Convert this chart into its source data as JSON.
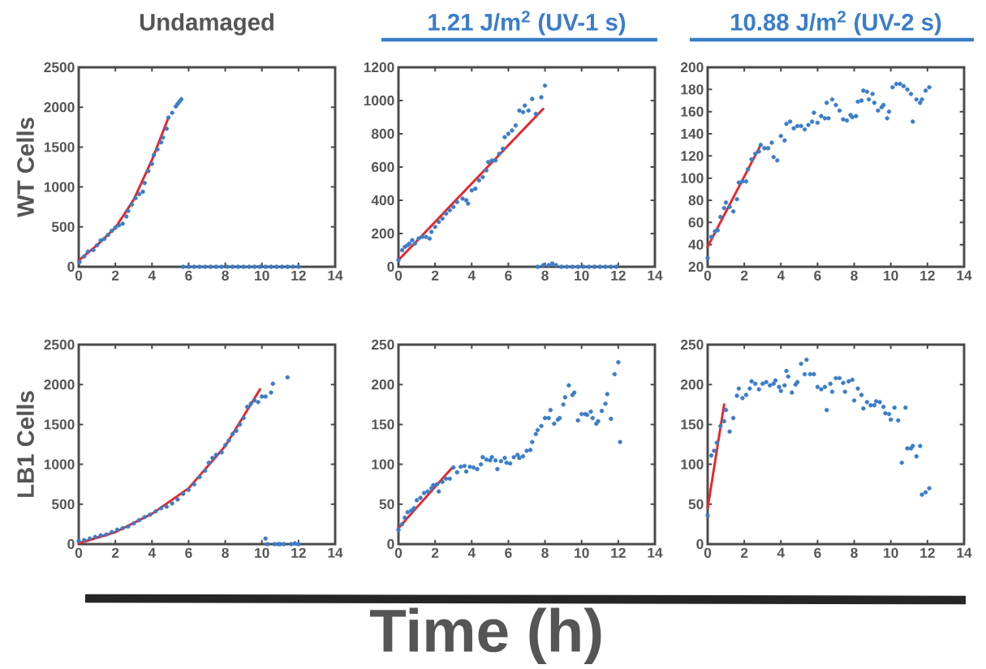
{
  "chart_data": [
    {
      "type": "scatter",
      "title": "Undamaged",
      "ylabel": "WT Cells",
      "xlim": [
        0,
        14
      ],
      "ylim": [
        0,
        2500
      ],
      "xticks": [
        0,
        2,
        4,
        6,
        8,
        10,
        12,
        14
      ],
      "yticks": [
        0,
        500,
        1000,
        1500,
        2000,
        2500
      ],
      "series": [
        {
          "color": "#3a7dc9",
          "marker": "circle",
          "x": [
            0.05,
            0.3,
            0.5,
            0.8,
            1.0,
            1.2,
            1.4,
            1.6,
            1.8,
            2.0,
            2.2,
            2.4,
            2.6,
            2.7,
            2.9,
            3.1,
            3.3,
            3.5,
            3.6,
            3.8,
            4.0,
            4.1,
            4.3,
            4.5,
            4.6,
            4.8,
            4.9,
            5.1,
            5.3,
            5.4,
            5.5,
            5.6,
            5.7,
            6.0,
            6.3,
            6.6,
            6.9,
            7.2,
            7.5,
            7.8,
            8.1,
            8.4,
            8.7,
            9.0,
            9.3,
            9.6,
            9.9,
            10.2,
            10.5,
            10.8,
            11.1,
            11.4,
            11.7,
            12.0
          ],
          "values": [
            60,
            130,
            190,
            210,
            270,
            330,
            350,
            400,
            450,
            490,
            520,
            540,
            630,
            700,
            780,
            860,
            910,
            940,
            1050,
            1200,
            1290,
            1400,
            1470,
            1560,
            1620,
            1730,
            1870,
            1930,
            2010,
            2040,
            2070,
            2100,
            0,
            0,
            0,
            0,
            0,
            0,
            0,
            0,
            0,
            0,
            0,
            0,
            0,
            0,
            0,
            0,
            0,
            0,
            0,
            0,
            0,
            0
          ]
        },
        {
          "type": "line",
          "color": "#e8262b",
          "x": [
            0,
            1,
            2,
            3,
            4,
            4.9
          ],
          "values": [
            80,
            270,
            490,
            840,
            1340,
            1870
          ]
        }
      ]
    },
    {
      "type": "scatter",
      "title": "1.21 J/m$^{2}$ (UV-1 s)",
      "xlim": [
        0,
        14
      ],
      "ylim": [
        0,
        1200
      ],
      "xticks": [
        0,
        2,
        4,
        6,
        8,
        10,
        12,
        14
      ],
      "yticks": [
        0,
        200,
        400,
        600,
        800,
        1000,
        1200
      ],
      "series": [
        {
          "color": "#3a7dc9",
          "marker": "circle",
          "x": [
            0,
            0.2,
            0.35,
            0.5,
            0.6,
            0.75,
            0.9,
            1.1,
            1.3,
            1.5,
            1.7,
            1.8,
            2.0,
            2.2,
            2.4,
            2.6,
            2.8,
            3.0,
            3.2,
            3.5,
            3.7,
            3.8,
            4.0,
            4.2,
            4.4,
            4.6,
            4.8,
            4.9,
            5.1,
            5.3,
            5.5,
            5.7,
            5.8,
            6.0,
            6.2,
            6.4,
            6.6,
            6.8,
            6.9,
            7.1,
            7.3,
            7.5,
            7.8,
            8.0,
            7.6,
            7.9,
            8.2,
            8.4,
            8.6,
            8.9,
            9.2,
            9.5,
            9.8,
            10.1,
            10.4,
            10.7,
            11.0,
            11.3,
            11.6,
            11.9
          ],
          "values": [
            40,
            100,
            120,
            130,
            140,
            160,
            140,
            170,
            180,
            180,
            170,
            210,
            240,
            270,
            290,
            320,
            340,
            360,
            390,
            410,
            400,
            380,
            460,
            470,
            520,
            540,
            580,
            630,
            640,
            640,
            680,
            710,
            780,
            800,
            820,
            850,
            940,
            930,
            970,
            940,
            1010,
            920,
            1020,
            1090,
            0,
            10,
            10,
            20,
            10,
            0,
            0,
            0,
            0,
            0,
            0,
            0,
            0,
            0,
            0,
            0
          ]
        },
        {
          "type": "line",
          "color": "#e8262b",
          "x": [
            0,
            7.9
          ],
          "values": [
            40,
            950
          ]
        }
      ]
    },
    {
      "type": "scatter",
      "title": "10.88 J/m$^{2}$ (UV-2 s)",
      "xlim": [
        0,
        14
      ],
      "ylim": [
        20,
        200
      ],
      "xticks": [
        0,
        2,
        4,
        6,
        8,
        10,
        12,
        14
      ],
      "yticks": [
        20,
        40,
        60,
        80,
        100,
        120,
        140,
        160,
        180,
        200
      ],
      "series": [
        {
          "color": "#3a7dc9",
          "marker": "circle",
          "x": [
            0,
            0.2,
            0.4,
            0.55,
            0.7,
            0.9,
            1.0,
            1.2,
            1.4,
            1.6,
            1.7,
            1.9,
            2.1,
            2.2,
            2.4,
            2.6,
            2.8,
            2.9,
            3.1,
            3.3,
            3.5,
            3.6,
            3.8,
            4.0,
            4.2,
            4.3,
            4.5,
            4.7,
            4.9,
            5.1,
            5.3,
            5.5,
            5.7,
            5.8,
            6.0,
            6.2,
            6.4,
            6.5,
            6.6,
            6.8,
            7.0,
            7.2,
            7.4,
            7.6,
            7.8,
            7.9,
            8.1,
            8.2,
            8.4,
            8.5,
            8.7,
            8.8,
            9.0,
            9.1,
            9.3,
            9.5,
            9.6,
            9.8,
            9.9,
            10.1,
            10.3,
            10.5,
            10.7,
            10.9,
            11.1,
            11.2,
            11.4,
            11.6,
            11.7,
            11.9,
            12.1
          ],
          "values": [
            28,
            47,
            52,
            53,
            65,
            73,
            78,
            74,
            70,
            81,
            96,
            97,
            97,
            108,
            117,
            122,
            124,
            130,
            127,
            127,
            132,
            119,
            116,
            138,
            134,
            149,
            151,
            145,
            147,
            147,
            144,
            148,
            151,
            159,
            150,
            156,
            154,
            168,
            154,
            171,
            166,
            161,
            153,
            152,
            157,
            155,
            156,
            169,
            170,
            179,
            178,
            171,
            176,
            168,
            161,
            164,
            166,
            154,
            160,
            182,
            185,
            185,
            183,
            180,
            176,
            151,
            171,
            168,
            171,
            179,
            182
          ]
        },
        {
          "type": "line",
          "color": "#e8262b",
          "x": [
            0,
            2.9
          ],
          "values": [
            38,
            130
          ]
        }
      ]
    },
    {
      "type": "scatter",
      "ylabel": "LB1 Cells",
      "xlim": [
        0,
        14
      ],
      "ylim": [
        0,
        2500
      ],
      "xticks": [
        0,
        2,
        4,
        6,
        8,
        10,
        12,
        14
      ],
      "yticks": [
        0,
        500,
        1000,
        1500,
        2000,
        2500
      ],
      "series": [
        {
          "color": "#3a7dc9",
          "marker": "circle",
          "x": [
            0,
            0.3,
            0.6,
            0.9,
            1.2,
            1.5,
            1.8,
            2.1,
            2.4,
            2.7,
            3.0,
            3.3,
            3.6,
            3.9,
            4.2,
            4.5,
            4.8,
            5.1,
            5.4,
            5.7,
            6.0,
            6.3,
            6.6,
            6.9,
            7.1,
            7.3,
            7.5,
            7.8,
            8.0,
            8.2,
            8.4,
            8.6,
            8.8,
            9.0,
            9.2,
            9.4,
            9.6,
            9.8,
            10.0,
            10.2,
            10.5,
            10.6,
            11.4,
            10.2,
            10.3,
            10.7,
            10.9,
            11.0,
            11.2,
            11.6,
            11.8,
            12.0
          ],
          "values": [
            40,
            50,
            70,
            90,
            110,
            120,
            150,
            180,
            200,
            220,
            260,
            300,
            340,
            370,
            410,
            450,
            470,
            510,
            560,
            630,
            680,
            750,
            840,
            920,
            1020,
            1080,
            1120,
            1150,
            1240,
            1300,
            1380,
            1420,
            1500,
            1580,
            1720,
            1760,
            1800,
            1780,
            1850,
            1850,
            1900,
            2010,
            2090,
            70,
            0,
            0,
            0,
            0,
            0,
            0,
            10,
            0
          ]
        },
        {
          "type": "line",
          "color": "#e8262b",
          "x": [
            0,
            2,
            4,
            6,
            8,
            9.9
          ],
          "values": [
            10,
            150,
            380,
            700,
            1230,
            1940
          ]
        }
      ]
    },
    {
      "type": "scatter",
      "xlabel": "Time (h)",
      "xlim": [
        0,
        14
      ],
      "ylim": [
        0,
        250
      ],
      "xticks": [
        0,
        2,
        4,
        6,
        8,
        10,
        12,
        14
      ],
      "yticks": [
        0,
        50,
        100,
        150,
        200,
        250
      ],
      "series": [
        {
          "color": "#3a7dc9",
          "marker": "circle",
          "x": [
            0,
            0.2,
            0.35,
            0.5,
            0.7,
            0.85,
            1.0,
            1.2,
            1.4,
            1.6,
            1.8,
            1.9,
            2.1,
            2.2,
            2.4,
            2.6,
            2.8,
            3.0,
            3.2,
            3.4,
            3.6,
            3.7,
            3.9,
            4.1,
            4.3,
            4.5,
            4.6,
            4.8,
            5.0,
            5.1,
            5.3,
            5.4,
            5.6,
            5.8,
            5.9,
            6.1,
            6.3,
            6.5,
            6.6,
            6.8,
            7.0,
            7.2,
            7.3,
            7.5,
            7.6,
            7.8,
            8.0,
            8.2,
            8.3,
            8.5,
            8.7,
            8.8,
            9.0,
            9.1,
            9.3,
            9.5,
            9.6,
            9.8,
            10.0,
            10.2,
            10.3,
            10.5,
            10.6,
            10.8,
            10.9,
            11.1,
            11.3,
            11.4,
            11.6,
            11.8,
            12.0,
            12.1
          ],
          "values": [
            18,
            25,
            33,
            40,
            42,
            45,
            55,
            58,
            64,
            66,
            70,
            74,
            75,
            66,
            78,
            82,
            82,
            96,
            90,
            97,
            98,
            91,
            97,
            96,
            94,
            100,
            109,
            106,
            105,
            109,
            105,
            94,
            104,
            108,
            102,
            101,
            109,
            112,
            108,
            110,
            117,
            118,
            128,
            138,
            143,
            148,
            158,
            158,
            168,
            151,
            156,
            158,
            175,
            184,
            199,
            187,
            190,
            155,
            163,
            163,
            162,
            166,
            158,
            151,
            154,
            167,
            176,
            188,
            157,
            213,
            228,
            128
          ]
        },
        {
          "type": "line",
          "color": "#e8262b",
          "x": [
            0,
            2.9
          ],
          "values": [
            20,
            95
          ]
        }
      ]
    },
    {
      "type": "scatter",
      "xlim": [
        0,
        14
      ],
      "ylim": [
        0,
        250
      ],
      "xticks": [
        0,
        2,
        4,
        6,
        8,
        10,
        12,
        14
      ],
      "yticks": [
        0,
        50,
        100,
        150,
        200,
        250
      ],
      "series": [
        {
          "color": "#3a7dc9",
          "marker": "circle",
          "x": [
            0,
            0.2,
            0.35,
            0.5,
            0.7,
            0.9,
            1.0,
            1.2,
            1.4,
            1.6,
            1.7,
            1.9,
            2.1,
            2.3,
            2.4,
            2.6,
            2.8,
            3.0,
            3.2,
            3.4,
            3.6,
            3.7,
            3.9,
            4.0,
            4.2,
            4.3,
            4.4,
            4.6,
            4.8,
            4.9,
            5.1,
            5.3,
            5.4,
            5.6,
            5.8,
            6.0,
            6.2,
            6.4,
            6.5,
            6.7,
            6.8,
            7.0,
            7.2,
            7.4,
            7.5,
            7.7,
            7.9,
            8.0,
            8.2,
            8.4,
            8.5,
            8.7,
            8.9,
            9.1,
            9.2,
            9.4,
            9.6,
            9.7,
            9.9,
            10.0,
            10.2,
            10.4,
            10.6,
            10.8,
            10.9,
            11.1,
            11.2,
            11.4,
            11.6,
            11.7,
            11.9,
            12.1
          ],
          "values": [
            36,
            111,
            117,
            127,
            148,
            154,
            168,
            141,
            158,
            186,
            195,
            183,
            187,
            195,
            204,
            201,
            194,
            201,
            203,
            199,
            201,
            205,
            197,
            192,
            199,
            217,
            210,
            190,
            200,
            203,
            226,
            213,
            231,
            213,
            213,
            197,
            194,
            197,
            168,
            201,
            191,
            208,
            208,
            202,
            191,
            204,
            206,
            180,
            195,
            187,
            170,
            178,
            174,
            174,
            179,
            178,
            172,
            164,
            163,
            156,
            171,
            155,
            102,
            171,
            120,
            120,
            123,
            110,
            123,
            62,
            65,
            70
          ]
        },
        {
          "type": "line",
          "color": "#e8262b",
          "x": [
            0,
            0.9
          ],
          "values": [
            45,
            175
          ]
        }
      ]
    }
  ]
}
